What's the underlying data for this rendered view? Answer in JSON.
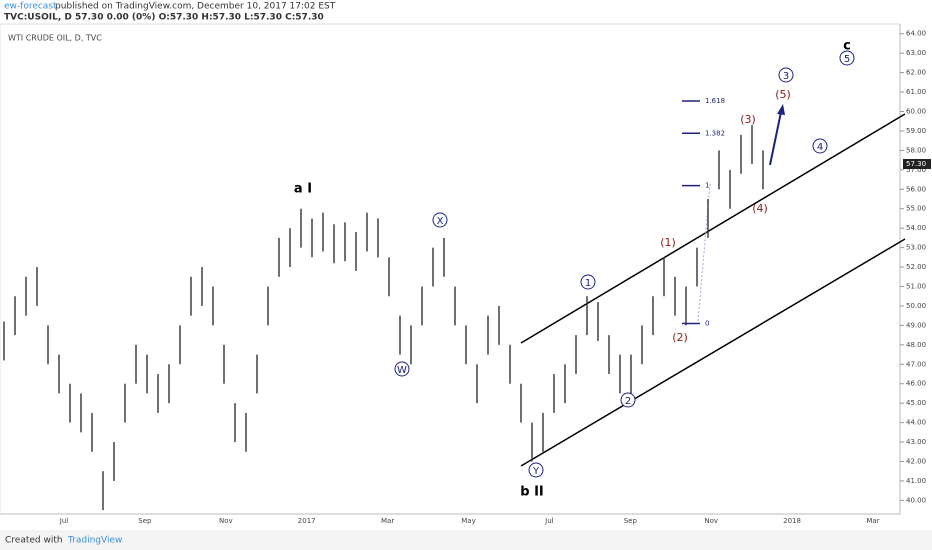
{
  "header": {
    "author": "ew-forecast",
    "published": "published on TradingView.com, December 10, 2017 17:02 EST",
    "quote": "TVC:USOIL, D  57.30  0.00 (0%)  O:57.30  H:57.30  L:57.30  C:57.30"
  },
  "footer": {
    "created": "Created with",
    "brand": "TradingView"
  },
  "chart_data": {
    "type": "ohlc",
    "title": "WTI CRUDE OIL, D, TVC",
    "high": [
      49.2,
      50.5,
      51.5,
      52,
      49,
      47.5,
      46,
      45.5,
      44.5,
      41.5,
      43,
      46,
      48,
      47.5,
      46.5,
      47,
      49,
      51.5,
      52,
      51,
      48,
      45,
      44.5,
      47.5,
      51,
      53.5,
      54,
      55,
      54.5,
      54.8,
      54.2,
      54.3,
      53.8,
      54.8,
      54.5,
      52.5,
      49.5,
      49,
      51,
      53,
      53.5,
      51,
      49,
      47,
      49.5,
      50,
      48,
      46,
      44,
      44.5,
      46.5,
      47,
      48.5,
      50.5,
      50.2,
      48.5,
      47.5,
      47.5,
      49,
      50.5,
      52.5,
      51.5,
      51,
      53,
      55.5,
      58,
      57,
      58.8,
      59.3,
      58
    ],
    "low": [
      47.2,
      48.5,
      49.5,
      50,
      47,
      45.5,
      44,
      43.5,
      42.5,
      39.5,
      41,
      44,
      46,
      45.5,
      44.5,
      45,
      47,
      49.5,
      50,
      49,
      46,
      43,
      42.5,
      45.5,
      49,
      51.5,
      52,
      53,
      52.5,
      52.8,
      52.2,
      52.3,
      51.8,
      52.8,
      52.5,
      50.5,
      47.5,
      47,
      49,
      51,
      51.5,
      49,
      47,
      45,
      47.5,
      48,
      46,
      44,
      42,
      42.5,
      44.5,
      45,
      46.5,
      48.5,
      48.2,
      46.5,
      45.5,
      45.5,
      47,
      48.5,
      50.5,
      49.5,
      49,
      51,
      53.5,
      56,
      55,
      56.8,
      57.3,
      56
    ],
    "color": "#333333",
    "last_price": {
      "value": 57.3,
      "label": "57.30"
    },
    "xticks": [
      "Jul",
      "Sep",
      "Nov",
      "2017",
      "Mar",
      "May",
      "Jul",
      "Sep",
      "Nov",
      "2018",
      "Mar"
    ],
    "ylim": [
      39.3,
      64.5
    ],
    "yticks": [
      {
        "value": 40,
        "label": "40.00"
      },
      {
        "value": 41,
        "label": "41.00"
      },
      {
        "value": 42,
        "label": "42.00"
      },
      {
        "value": 43,
        "label": "43.00"
      },
      {
        "value": 44,
        "label": "44.00"
      },
      {
        "value": 45,
        "label": "45.00"
      },
      {
        "value": 46,
        "label": "46.00"
      },
      {
        "value": 47,
        "label": "47.00"
      },
      {
        "value": 48,
        "label": "48.00"
      },
      {
        "value": 49,
        "label": "49.00"
      },
      {
        "value": 50,
        "label": "50.00"
      },
      {
        "value": 51,
        "label": "51.00"
      },
      {
        "value": 52,
        "label": "52.00"
      },
      {
        "value": 53,
        "label": "53.00"
      },
      {
        "value": 54,
        "label": "54.00"
      },
      {
        "value": 55,
        "label": "55.00"
      },
      {
        "value": 56,
        "label": "56.00"
      },
      {
        "value": 57,
        "label": "57.00"
      },
      {
        "value": 58,
        "label": "58.00"
      },
      {
        "value": 59,
        "label": "59.00"
      },
      {
        "value": 60,
        "label": "60.00"
      },
      {
        "value": 61,
        "label": "61.00"
      },
      {
        "value": 62,
        "label": "62.00"
      },
      {
        "value": 63,
        "label": "63.00"
      },
      {
        "value": 64,
        "label": "64.00"
      }
    ],
    "fib_levels": [
      {
        "label": "1.618",
        "price": 60.54
      },
      {
        "label": "1.382",
        "price": 58.88
      },
      {
        "label": "1",
        "price": 56.19
      },
      {
        "label": "0",
        "price": 49.1
      }
    ],
    "waves": [
      "a I",
      "W",
      "X",
      "Y",
      "b II",
      "1",
      "2",
      "(1)",
      "(2)",
      "(3)",
      "(4)",
      "(5)",
      "3",
      "4",
      "c",
      "5"
    ]
  }
}
